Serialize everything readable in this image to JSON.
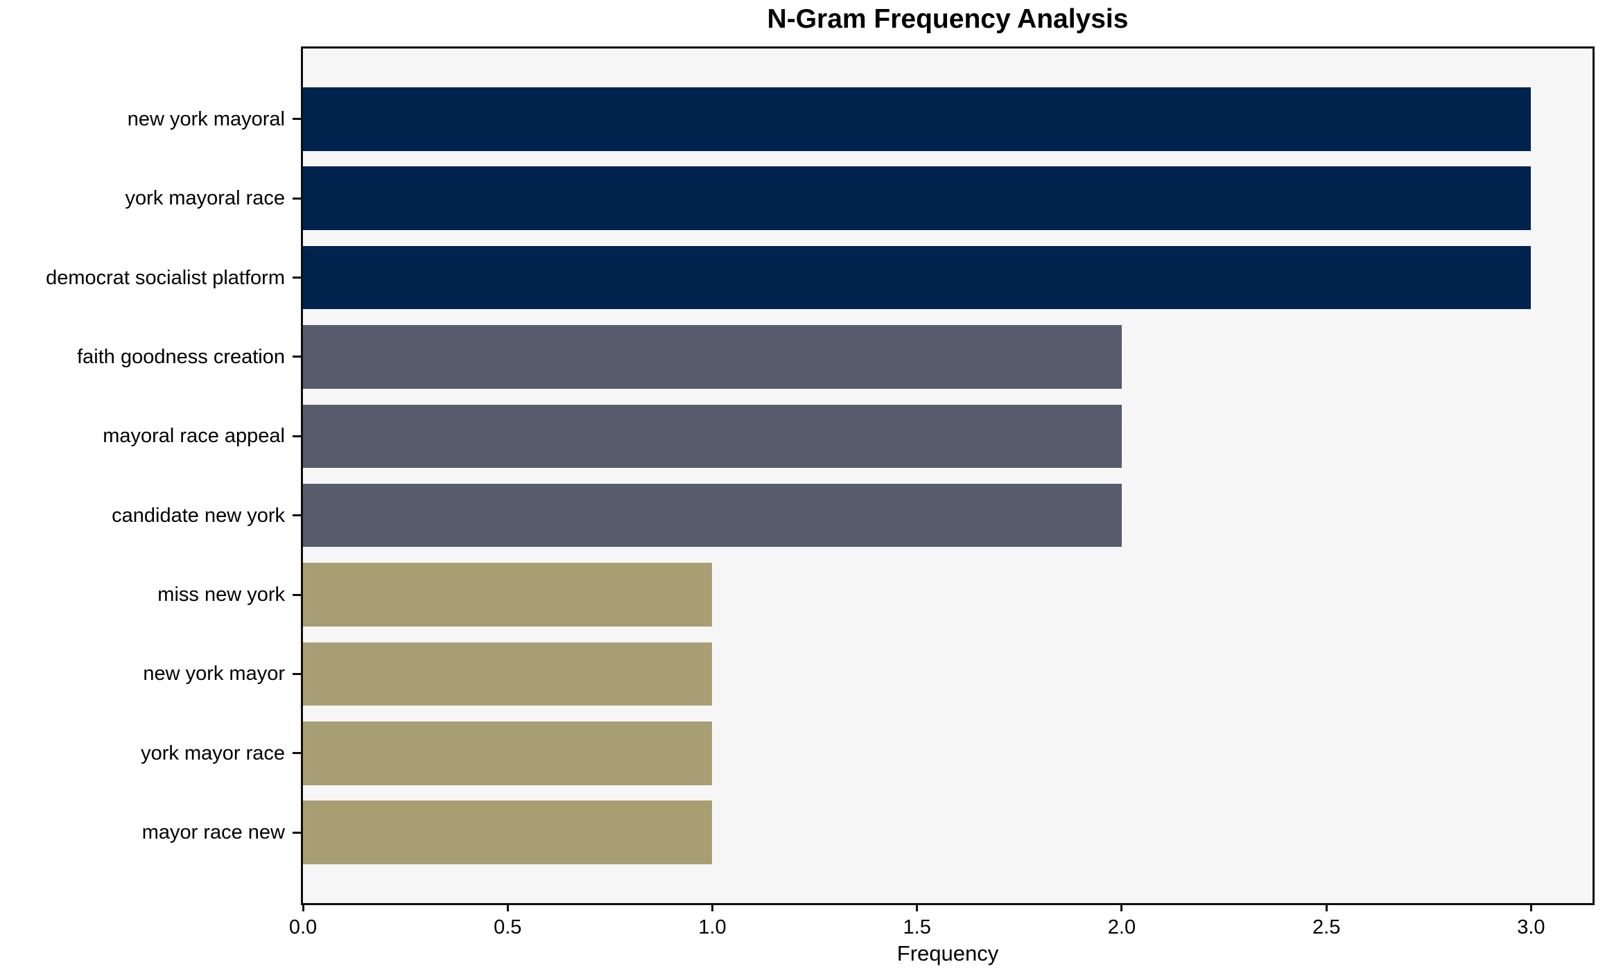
{
  "chart_data": {
    "type": "bar",
    "orientation": "horizontal",
    "title": "N-Gram Frequency Analysis",
    "xlabel": "Frequency",
    "ylabel": "",
    "categories": [
      "new york mayoral",
      "york mayoral race",
      "democrat socialist platform",
      "faith goodness creation",
      "mayoral race appeal",
      "candidate new york",
      "miss new york",
      "new york mayor",
      "york mayor race",
      "mayor race new"
    ],
    "values": [
      3,
      3,
      3,
      2,
      2,
      2,
      1,
      1,
      1,
      1
    ],
    "bar_colors": [
      "#00234e",
      "#00234e",
      "#00234e",
      "#575c6c",
      "#575c6c",
      "#575c6c",
      "#a79e73",
      "#a79e73",
      "#a79e73",
      "#a79e73"
    ],
    "colors_by_value": {
      "3": "#00234e",
      "2": "#575c6c",
      "1": "#a79e73"
    },
    "xlim": [
      0,
      3.15
    ],
    "xticks": [
      0.0,
      0.5,
      1.0,
      1.5,
      2.0,
      2.5,
      3.0
    ],
    "xtick_labels": [
      "0.0",
      "0.5",
      "1.0",
      "1.5",
      "2.0",
      "2.5",
      "3.0"
    ],
    "grid": false,
    "legend": null,
    "plot_background": "#f6f6f6",
    "frame_color": "#0e0e0e",
    "text_color": "#000000"
  }
}
